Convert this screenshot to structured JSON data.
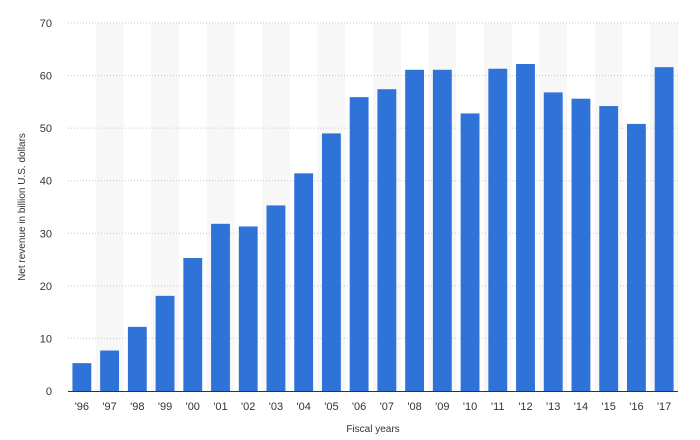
{
  "chart_data": {
    "type": "bar",
    "title": "",
    "xlabel": "Fiscal years",
    "ylabel": "Net revenue in billion U.S. dollars",
    "ylim": [
      0,
      70
    ],
    "yticks": [
      0,
      10,
      20,
      30,
      40,
      50,
      60,
      70
    ],
    "grid": true,
    "legend": "none",
    "bar_color": "#2f73d9",
    "categories": [
      "'96",
      "'97",
      "'98",
      "'99",
      "'00",
      "'01",
      "'02",
      "'03",
      "'04",
      "'05",
      "'06",
      "'07",
      "'08",
      "'09",
      "'10",
      "'11",
      "'12",
      "'13",
      "'14",
      "'15",
      "'16",
      "'17"
    ],
    "values": [
      5.3,
      7.7,
      12.2,
      18.1,
      25.3,
      31.8,
      31.3,
      35.3,
      41.4,
      49.0,
      55.9,
      57.4,
      61.1,
      61.1,
      52.8,
      61.3,
      62.2,
      56.8,
      55.6,
      54.2,
      50.8,
      61.6
    ]
  }
}
